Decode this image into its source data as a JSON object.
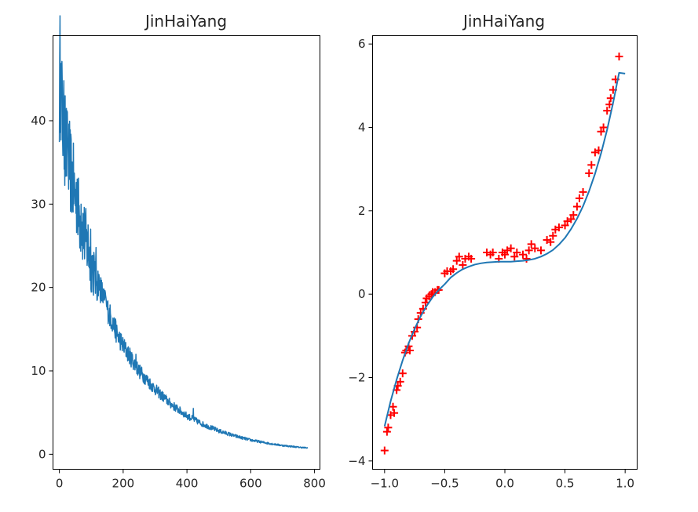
{
  "chart_data": [
    {
      "type": "line",
      "title": "JinHaiYang",
      "xlabel": "",
      "ylabel": "",
      "xlim": [
        -20,
        817
      ],
      "ylim": [
        -1.8,
        50.2
      ],
      "xticks": [
        0,
        200,
        400,
        600,
        800
      ],
      "yticks": [
        0,
        10,
        20,
        30,
        40
      ],
      "grid": false,
      "legend": "none",
      "series": [
        {
          "color": "#1f77b4",
          "points": 780,
          "x_range": [
            0,
            779
          ],
          "envelope_x": [
            0,
            2,
            5,
            10,
            20,
            30,
            40,
            50,
            60,
            80,
            100,
            120,
            140,
            160,
            180,
            200,
            225,
            250,
            300,
            350,
            400,
            450,
            500,
            550,
            600,
            650,
            700,
            750,
            779
          ],
          "envelope_y": [
            43,
            46,
            44,
            40,
            37,
            35,
            33,
            31,
            29,
            26,
            23,
            21,
            18.5,
            16.5,
            14.5,
            13,
            11.5,
            10,
            7.8,
            6.0,
            4.6,
            3.6,
            2.8,
            2.2,
            1.7,
            1.35,
            1.05,
            0.85,
            0.75
          ],
          "spikes": [
            {
              "x": 1,
              "y": 47.5
            },
            {
              "x": 4,
              "y": 46.5
            },
            {
              "x": 7,
              "y": 44
            },
            {
              "x": 12,
              "y": 41
            },
            {
              "x": 18,
              "y": 43
            },
            {
              "x": 26,
              "y": 38
            },
            {
              "x": 33,
              "y": 35
            },
            {
              "x": 48,
              "y": 32
            },
            {
              "x": 56,
              "y": 33
            },
            {
              "x": 68,
              "y": 30
            },
            {
              "x": 75,
              "y": 28
            },
            {
              "x": 90,
              "y": 27.5
            },
            {
              "x": 98,
              "y": 27
            },
            {
              "x": 110,
              "y": 22
            },
            {
              "x": 145,
              "y": 19
            },
            {
              "x": 165,
              "y": 15.5
            },
            {
              "x": 205,
              "y": 13
            },
            {
              "x": 240,
              "y": 12
            },
            {
              "x": 300,
              "y": 7.5
            },
            {
              "x": 420,
              "y": 5.5
            }
          ]
        }
      ]
    },
    {
      "type": "scatter",
      "title": "JinHaiYang",
      "xlabel": "",
      "ylabel": "",
      "xlim": [
        -1.1,
        1.1
      ],
      "ylim": [
        -4.2,
        6.2
      ],
      "xticks": [
        -1.0,
        -0.5,
        0.0,
        0.5,
        1.0
      ],
      "xtick_labels": [
        "−1.0",
        "−0.5",
        "0.0",
        "0.5",
        "1.0"
      ],
      "yticks": [
        -4,
        -2,
        0,
        2,
        4,
        6
      ],
      "ytick_labels": [
        "−4",
        "−2",
        "0",
        "2",
        "4",
        "6"
      ],
      "grid": false,
      "legend": "none",
      "series": [
        {
          "kind": "scatter",
          "marker": "+",
          "color": "#ff0000",
          "x": [
            -1.0,
            -0.98,
            -0.97,
            -0.95,
            -0.93,
            -0.92,
            -0.9,
            -0.89,
            -0.87,
            -0.85,
            -0.83,
            -0.82,
            -0.8,
            -0.79,
            -0.77,
            -0.75,
            -0.73,
            -0.72,
            -0.7,
            -0.68,
            -0.66,
            -0.65,
            -0.63,
            -0.61,
            -0.6,
            -0.58,
            -0.56,
            -0.55,
            -0.5,
            -0.48,
            -0.45,
            -0.43,
            -0.4,
            -0.38,
            -0.35,
            -0.33,
            -0.3,
            -0.28,
            -0.15,
            -0.12,
            -0.1,
            -0.05,
            -0.02,
            0.0,
            0.02,
            0.05,
            0.08,
            0.1,
            0.15,
            0.18,
            0.2,
            0.22,
            0.25,
            0.3,
            0.35,
            0.38,
            0.4,
            0.42,
            0.45,
            0.5,
            0.52,
            0.55,
            0.57,
            0.6,
            0.62,
            0.65,
            0.7,
            0.72,
            0.75,
            0.78,
            0.8,
            0.82,
            0.85,
            0.87,
            0.88,
            0.9,
            0.92,
            0.95
          ],
          "y": [
            -3.75,
            -3.3,
            -3.2,
            -2.9,
            -2.7,
            -2.85,
            -2.3,
            -2.2,
            -2.1,
            -1.9,
            -1.4,
            -1.35,
            -1.25,
            -1.35,
            -1.0,
            -0.9,
            -0.8,
            -0.6,
            -0.45,
            -0.35,
            -0.2,
            -0.1,
            -0.05,
            0.0,
            0.05,
            0.05,
            0.1,
            0.1,
            0.5,
            0.55,
            0.55,
            0.6,
            0.8,
            0.9,
            0.7,
            0.85,
            0.9,
            0.85,
            1.0,
            0.95,
            1.0,
            0.85,
            1.0,
            0.95,
            1.05,
            1.1,
            0.9,
            1.0,
            0.95,
            0.85,
            1.05,
            1.2,
            1.1,
            1.05,
            1.3,
            1.25,
            1.4,
            1.55,
            1.6,
            1.65,
            1.75,
            1.8,
            1.9,
            2.1,
            2.3,
            2.45,
            2.9,
            3.1,
            3.4,
            3.45,
            3.9,
            4.0,
            4.4,
            4.55,
            4.7,
            4.9,
            5.15,
            5.7
          ]
        },
        {
          "kind": "line",
          "color": "#1f77b4",
          "x": [
            -1.0,
            -0.95,
            -0.9,
            -0.85,
            -0.8,
            -0.75,
            -0.7,
            -0.65,
            -0.6,
            -0.55,
            -0.5,
            -0.45,
            -0.4,
            -0.35,
            -0.3,
            -0.25,
            -0.2,
            -0.15,
            -0.1,
            -0.05,
            0.0,
            0.05,
            0.1,
            0.15,
            0.2,
            0.25,
            0.3,
            0.35,
            0.4,
            0.45,
            0.5,
            0.55,
            0.6,
            0.65,
            0.7,
            0.75,
            0.8,
            0.85,
            0.9,
            0.95,
            1.0
          ],
          "y": [
            -3.17,
            -2.57,
            -2.05,
            -1.59,
            -1.18,
            -0.83,
            -0.53,
            -0.28,
            -0.07,
            0.1,
            0.24,
            0.4,
            0.51,
            0.6,
            0.66,
            0.71,
            0.74,
            0.76,
            0.77,
            0.78,
            0.78,
            0.78,
            0.79,
            0.8,
            0.82,
            0.85,
            0.9,
            0.97,
            1.06,
            1.19,
            1.35,
            1.56,
            1.81,
            2.11,
            2.47,
            2.89,
            3.38,
            3.94,
            4.59,
            5.31,
            5.29
          ]
        }
      ]
    }
  ]
}
